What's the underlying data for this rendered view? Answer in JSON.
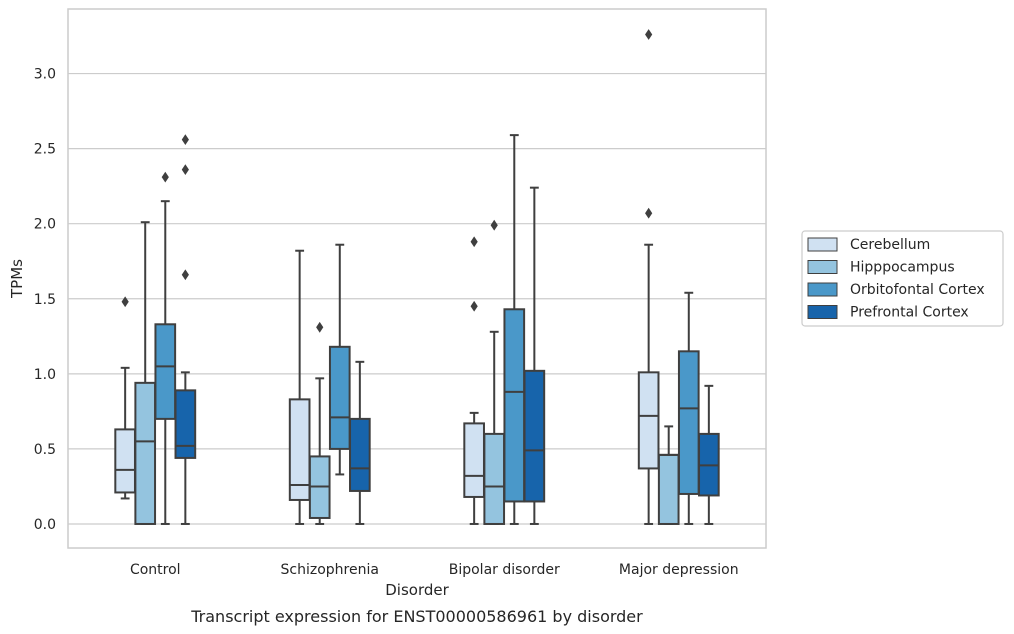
{
  "chart_data": {
    "type": "box",
    "caption": "Transcript expression for ENST00000586961 by disorder",
    "xlabel": "Disorder",
    "ylabel": "TPMs",
    "ylim": [
      -0.16,
      3.43
    ],
    "yticks": [
      "0.0",
      "0.5",
      "1.0",
      "1.5",
      "2.0",
      "2.5",
      "3.0"
    ],
    "grid": "horizontal",
    "legend_position": "right",
    "categories": [
      "Control",
      "Schizophrenia",
      "Bipolar disorder",
      "Major depression"
    ],
    "series": [
      {
        "name": "Cerebellum",
        "color": "#d0e1f2",
        "boxes": [
          {
            "whisker_low": 0.17,
            "q1": 0.21,
            "median": 0.36,
            "q3": 0.63,
            "whisker_high": 1.04,
            "outliers": [
              1.48
            ]
          },
          {
            "whisker_low": 0.0,
            "q1": 0.16,
            "median": 0.26,
            "q3": 0.83,
            "whisker_high": 1.82,
            "outliers": []
          },
          {
            "whisker_low": 0.0,
            "q1": 0.18,
            "median": 0.32,
            "q3": 0.67,
            "whisker_high": 0.74,
            "outliers": [
              1.45,
              1.88
            ]
          },
          {
            "whisker_low": 0.0,
            "q1": 0.37,
            "median": 0.72,
            "q3": 1.01,
            "whisker_high": 1.86,
            "outliers": [
              2.07,
              3.26
            ]
          }
        ]
      },
      {
        "name": "Hipppocampus",
        "color": "#94c4df",
        "boxes": [
          {
            "whisker_low": 0.0,
            "q1": 0.0,
            "median": 0.55,
            "q3": 0.94,
            "whisker_high": 2.01,
            "outliers": []
          },
          {
            "whisker_low": 0.0,
            "q1": 0.04,
            "median": 0.25,
            "q3": 0.45,
            "whisker_high": 0.97,
            "outliers": [
              1.31
            ]
          },
          {
            "whisker_low": 0.0,
            "q1": 0.0,
            "median": 0.25,
            "q3": 0.6,
            "whisker_high": 1.28,
            "outliers": [
              1.99
            ]
          },
          {
            "whisker_low": 0.0,
            "q1": 0.0,
            "median": 0.46,
            "q3": 0.46,
            "whisker_high": 0.65,
            "outliers": []
          }
        ]
      },
      {
        "name": "Orbitofontal Cortex",
        "color": "#4a98c9",
        "boxes": [
          {
            "whisker_low": 0.0,
            "q1": 0.7,
            "median": 1.05,
            "q3": 1.33,
            "whisker_high": 2.15,
            "outliers": [
              2.31
            ]
          },
          {
            "whisker_low": 0.33,
            "q1": 0.5,
            "median": 0.71,
            "q3": 1.18,
            "whisker_high": 1.86,
            "outliers": []
          },
          {
            "whisker_low": 0.0,
            "q1": 0.15,
            "median": 0.88,
            "q3": 1.43,
            "whisker_high": 2.59,
            "outliers": []
          },
          {
            "whisker_low": 0.0,
            "q1": 0.2,
            "median": 0.77,
            "q3": 1.15,
            "whisker_high": 1.54,
            "outliers": []
          }
        ]
      },
      {
        "name": "Prefrontal Cortex",
        "color": "#1764ab",
        "boxes": [
          {
            "whisker_low": 0.0,
            "q1": 0.44,
            "median": 0.52,
            "q3": 0.89,
            "whisker_high": 1.01,
            "outliers": [
              1.66,
              2.36,
              2.56
            ]
          },
          {
            "whisker_low": 0.0,
            "q1": 0.22,
            "median": 0.37,
            "q3": 0.7,
            "whisker_high": 1.08,
            "outliers": []
          },
          {
            "whisker_low": 0.0,
            "q1": 0.15,
            "median": 0.49,
            "q3": 1.02,
            "whisker_high": 2.24,
            "outliers": []
          },
          {
            "whisker_low": 0.0,
            "q1": 0.19,
            "median": 0.39,
            "q3": 0.6,
            "whisker_high": 0.92,
            "outliers": []
          }
        ]
      }
    ]
  }
}
